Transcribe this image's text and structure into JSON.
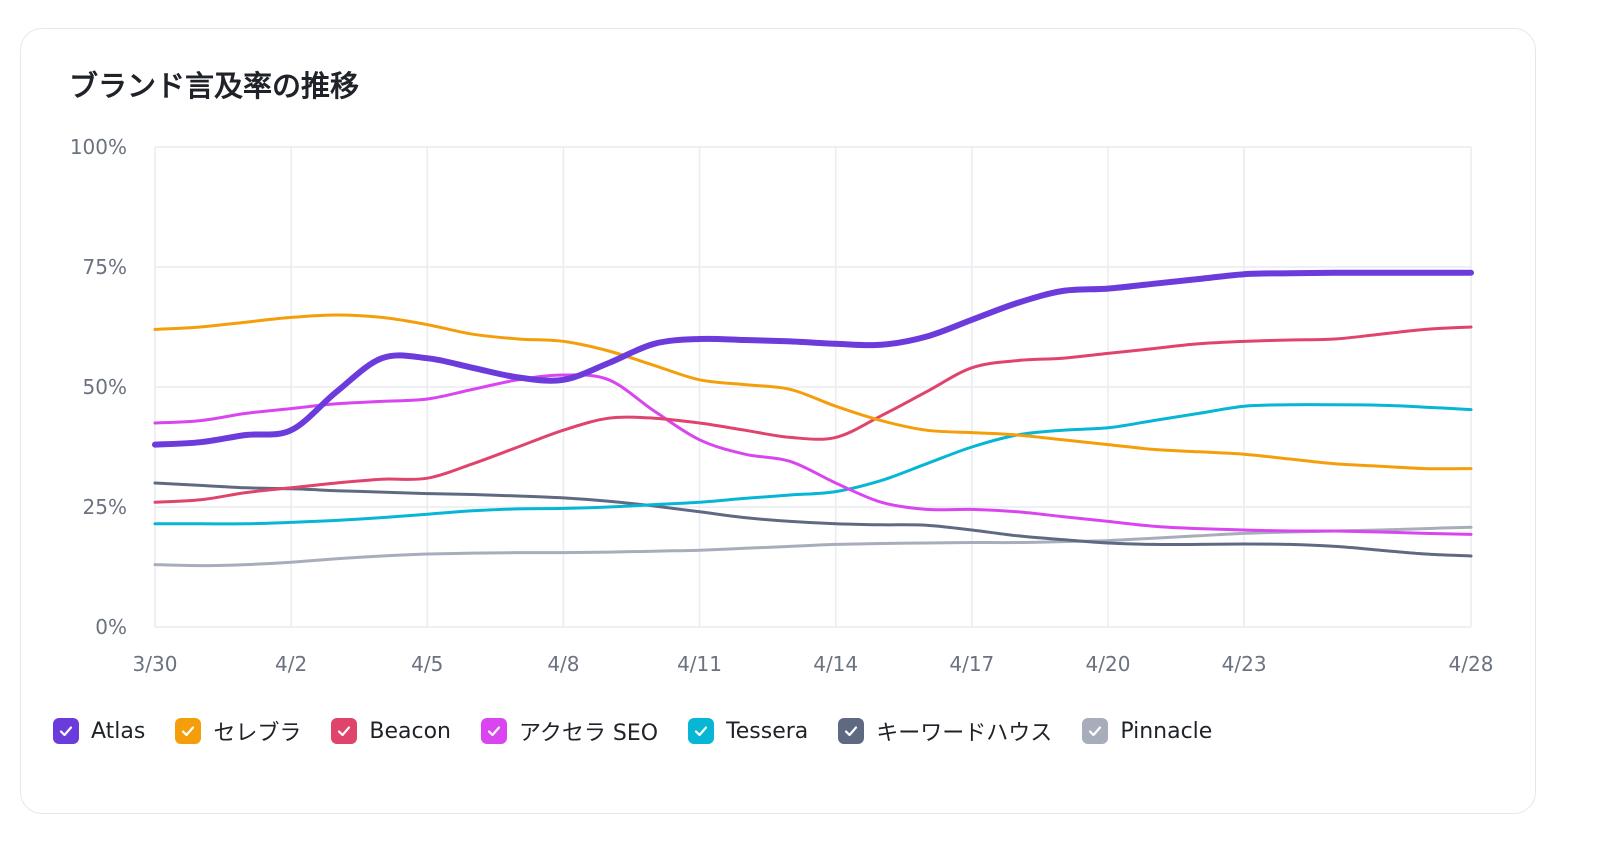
{
  "card": {
    "title": "ブランド言及率の推移"
  },
  "chart_data": {
    "type": "line",
    "title": "ブランド言及率の推移",
    "ylim": [
      0,
      100
    ],
    "y_ticks": [
      "0%",
      "25%",
      "50%",
      "75%",
      "100%"
    ],
    "y_tick_values": [
      0,
      25,
      50,
      75,
      100
    ],
    "x_ticks": [
      "3/30",
      "4/2",
      "4/5",
      "4/8",
      "4/11",
      "4/14",
      "4/17",
      "4/20",
      "4/23",
      "4/28"
    ],
    "x_tick_days": [
      0,
      3,
      6,
      9,
      12,
      15,
      18,
      21,
      24,
      29
    ],
    "x": [
      "3/30",
      "3/31",
      "4/1",
      "4/2",
      "4/3",
      "4/4",
      "4/5",
      "4/6",
      "4/7",
      "4/8",
      "4/9",
      "4/10",
      "4/11",
      "4/12",
      "4/13",
      "4/14",
      "4/15",
      "4/16",
      "4/17",
      "4/18",
      "4/19",
      "4/20",
      "4/21",
      "4/22",
      "4/23",
      "4/24",
      "4/25",
      "4/26",
      "4/27",
      "4/28"
    ],
    "grid": true,
    "legend_position": "bottom-left",
    "series": [
      {
        "name": "Atlas",
        "color": "#6c3bdc",
        "values": [
          38,
          38.5,
          40,
          41,
          49,
          56,
          56,
          54,
          52,
          51.5,
          55,
          59,
          60,
          59.8,
          59.5,
          59,
          58.8,
          60.5,
          64,
          67.5,
          70,
          70.5,
          71.5,
          72.5,
          73.5,
          73.7,
          73.8,
          73.8,
          73.8,
          73.8
        ]
      },
      {
        "name": "セレブラ",
        "color": "#f59e0b",
        "values": [
          62,
          62.5,
          63.5,
          64.5,
          65,
          64.5,
          63,
          61,
          60,
          59.5,
          57.5,
          54.5,
          51.5,
          50.5,
          49.5,
          46,
          43,
          41,
          40.5,
          40,
          39,
          38,
          37,
          36.5,
          36,
          35,
          34,
          33.5,
          33,
          33
        ]
      },
      {
        "name": "Beacon",
        "color": "#e0436b",
        "values": [
          26,
          26.5,
          28,
          29,
          30,
          30.8,
          31,
          34,
          37.5,
          41,
          43.5,
          43.5,
          42.5,
          41,
          39.5,
          39.5,
          44,
          49,
          54,
          55.5,
          56,
          57,
          58,
          59,
          59.5,
          59.8,
          60,
          61,
          62,
          62.5
        ]
      },
      {
        "name": "アクセラ SEO",
        "color": "#d946ef",
        "values": [
          42.5,
          43,
          44.5,
          45.5,
          46.5,
          47,
          47.5,
          49.5,
          51.5,
          52.5,
          51.5,
          45,
          39,
          36,
          34.5,
          30,
          26,
          24.5,
          24.5,
          24,
          23,
          22,
          21,
          20.5,
          20.2,
          20,
          20,
          19.8,
          19.5,
          19.3
        ]
      },
      {
        "name": "Tessera",
        "color": "#06b6d4",
        "values": [
          21.5,
          21.5,
          21.5,
          21.8,
          22.2,
          22.8,
          23.5,
          24.2,
          24.6,
          24.7,
          25,
          25.5,
          26,
          26.8,
          27.5,
          28.2,
          30.5,
          34,
          37.5,
          40,
          41,
          41.5,
          43,
          44.5,
          46,
          46.3,
          46.3,
          46.2,
          45.8,
          45.3
        ]
      },
      {
        "name": "キーワードハウス",
        "color": "#5f6a82",
        "values": [
          30,
          29.5,
          29,
          28.8,
          28.4,
          28.1,
          27.8,
          27.6,
          27.3,
          26.9,
          26.2,
          25.2,
          24,
          22.8,
          22,
          21.5,
          21.3,
          21.2,
          20.2,
          19,
          18.2,
          17.5,
          17.2,
          17.2,
          17.3,
          17.2,
          16.8,
          16,
          15.2,
          14.8
        ]
      },
      {
        "name": "Pinnacle",
        "color": "#a7adba",
        "values": [
          13,
          12.8,
          13,
          13.5,
          14.2,
          14.8,
          15.2,
          15.4,
          15.5,
          15.5,
          15.6,
          15.8,
          16,
          16.4,
          16.8,
          17.2,
          17.4,
          17.5,
          17.6,
          17.6,
          17.8,
          18,
          18.5,
          19,
          19.5,
          19.8,
          20,
          20.2,
          20.5,
          20.8
        ]
      }
    ]
  },
  "legend": {
    "items": [
      "Atlas",
      "セレブラ",
      "Beacon",
      "アクセラ SEO",
      "Tessera",
      "キーワードハウス",
      "Pinnacle"
    ],
    "colors": [
      "#6c3bdc",
      "#f59e0b",
      "#e0436b",
      "#d946ef",
      "#06b6d4",
      "#5f6a82",
      "#a7adba"
    ],
    "icon": "checkmark-icon"
  }
}
